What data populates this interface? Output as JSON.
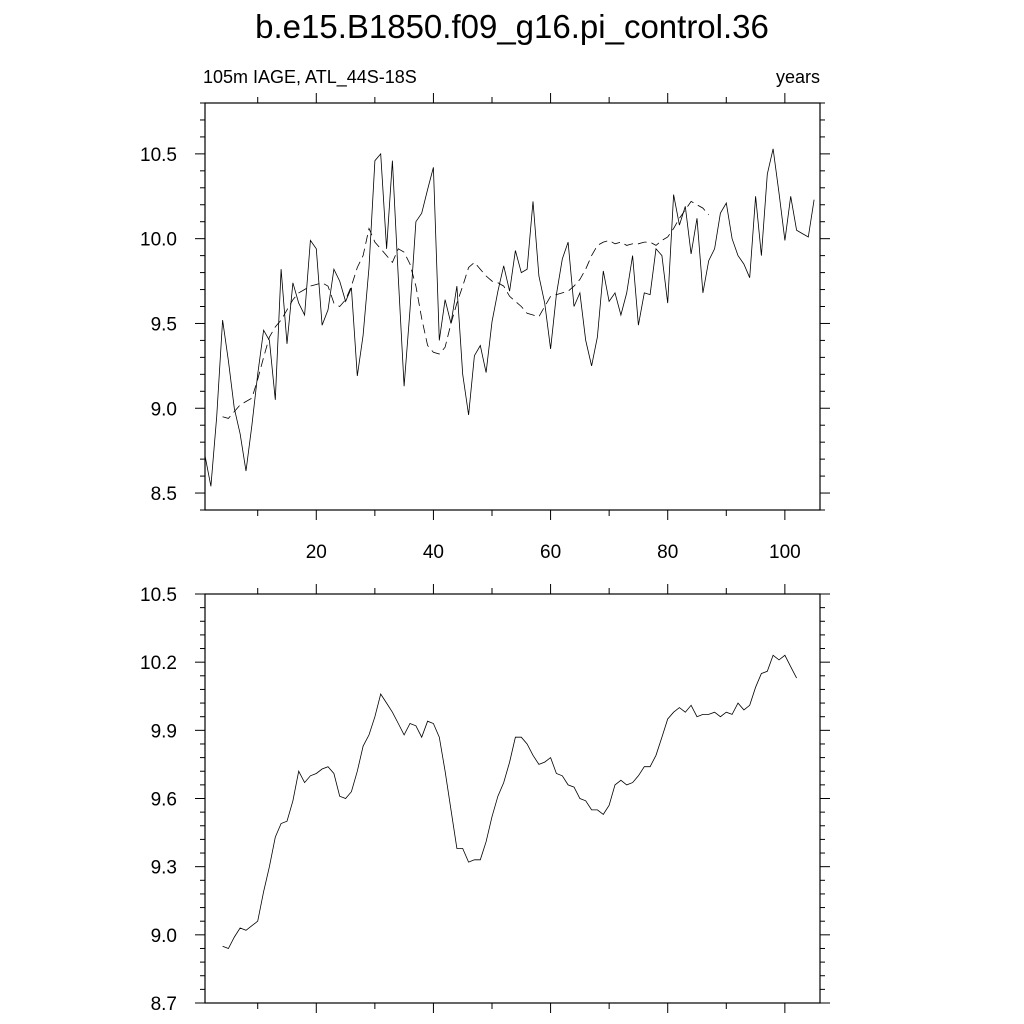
{
  "title": "b.e15.B1850.f09_g16.pi_control.36",
  "chart_data": [
    {
      "type": "line",
      "title": "",
      "left_string": "105m IAGE, ATL_44S-18S",
      "right_string": "years",
      "xlabel": "",
      "ylabel": "",
      "xlim": [
        1,
        106
      ],
      "ylim": [
        8.4,
        10.8
      ],
      "x_ticks": [
        20,
        40,
        60,
        80,
        100
      ],
      "x_tick_labels": [
        "20",
        "40",
        "60",
        "80",
        "100"
      ],
      "y_ticks": [
        8.5,
        9.0,
        9.5,
        10.0,
        10.5
      ],
      "y_tick_labels": [
        "8.5",
        "9.0",
        "9.5",
        "10.0",
        "10.5"
      ],
      "grid": false,
      "series": [
        {
          "style": "solid",
          "x_start": 1,
          "values": [
            8.72,
            8.54,
            8.95,
            9.52,
            9.28,
            9.0,
            8.85,
            8.63,
            8.9,
            9.2,
            9.46,
            9.4,
            9.05,
            9.82,
            9.38,
            9.74,
            9.62,
            9.55,
            9.99,
            9.94,
            9.49,
            9.58,
            9.82,
            9.75,
            9.63,
            9.71,
            9.19,
            9.43,
            9.83,
            10.46,
            10.5,
            9.94,
            10.46,
            9.77,
            9.13,
            9.58,
            10.1,
            10.15,
            10.29,
            10.42,
            9.4,
            9.64,
            9.5,
            9.72,
            9.2,
            8.96,
            9.31,
            9.37,
            9.21,
            9.51,
            9.69,
            9.84,
            9.69,
            9.93,
            9.8,
            9.82,
            10.22,
            9.78,
            9.62,
            9.35,
            9.67,
            9.88,
            9.98,
            9.6,
            9.68,
            9.4,
            9.25,
            9.42,
            9.81,
            9.63,
            9.68,
            9.55,
            9.68,
            9.9,
            9.49,
            9.68,
            9.67,
            9.94,
            9.9,
            9.62,
            10.26,
            10.08,
            10.19,
            9.91,
            10.12,
            9.68,
            9.87,
            9.94,
            10.15,
            10.21,
            10.0,
            9.9,
            9.85,
            9.77,
            10.25,
            9.9,
            10.38,
            10.53,
            10.27,
            9.99,
            10.25,
            10.05,
            10.03,
            10.01,
            10.23
          ]
        },
        {
          "style": "dashed",
          "x_start": 4,
          "values": [
            8.95,
            8.94,
            8.98,
            9.02,
            9.04,
            9.06,
            9.17,
            9.3,
            9.42,
            9.48,
            9.52,
            9.58,
            9.64,
            9.68,
            9.7,
            9.72,
            9.73,
            9.74,
            9.72,
            9.62,
            9.6,
            9.64,
            9.72,
            9.83,
            9.9,
            10.06,
            9.98,
            9.94,
            9.9,
            9.86,
            9.94,
            9.92,
            9.85,
            9.72,
            9.53,
            9.37,
            9.33,
            9.32,
            9.36,
            9.5,
            9.62,
            9.72,
            9.83,
            9.86,
            9.82,
            9.78,
            9.75,
            9.74,
            9.72,
            9.66,
            9.63,
            9.6,
            9.56,
            9.55,
            9.54,
            9.6,
            9.66,
            9.67,
            9.68,
            9.69,
            9.72,
            9.76,
            9.82,
            9.9,
            9.96,
            9.98,
            9.99,
            9.97,
            9.98,
            9.96,
            9.97,
            9.97,
            9.98,
            9.98,
            9.96,
            9.99,
            10.01,
            10.06,
            10.12,
            10.17,
            10.22,
            10.2,
            10.18,
            10.14
          ]
        }
      ]
    },
    {
      "type": "line",
      "title": "",
      "xlabel": "",
      "ylabel": "",
      "xlim": [
        1,
        106
      ],
      "ylim": [
        8.7,
        10.5
      ],
      "x_ticks": [
        20,
        40,
        60,
        80,
        100
      ],
      "y_ticks": [
        8.7,
        9.0,
        9.3,
        9.6,
        9.9,
        10.2,
        10.5
      ],
      "y_tick_labels": [
        "8.7",
        "9.0",
        "9.3",
        "9.6",
        "9.9",
        "10.2",
        "10.5"
      ],
      "grid": false,
      "series": [
        {
          "style": "solid",
          "x_start": 4,
          "values": [
            8.95,
            8.94,
            8.99,
            9.03,
            9.02,
            9.04,
            9.06,
            9.19,
            9.3,
            9.43,
            9.49,
            9.5,
            9.59,
            9.72,
            9.67,
            9.7,
            9.71,
            9.73,
            9.74,
            9.71,
            9.61,
            9.6,
            9.63,
            9.72,
            9.83,
            9.88,
            9.96,
            10.06,
            10.02,
            9.98,
            9.93,
            9.88,
            9.93,
            9.92,
            9.87,
            9.94,
            9.93,
            9.87,
            9.72,
            9.55,
            9.38,
            9.38,
            9.32,
            9.33,
            9.33,
            9.41,
            9.52,
            9.61,
            9.67,
            9.76,
            9.87,
            9.87,
            9.84,
            9.79,
            9.75,
            9.76,
            9.78,
            9.71,
            9.7,
            9.66,
            9.65,
            9.6,
            9.59,
            9.55,
            9.55,
            9.53,
            9.57,
            9.66,
            9.68,
            9.66,
            9.67,
            9.7,
            9.74,
            9.74,
            9.79,
            9.87,
            9.95,
            9.98,
            10.0,
            9.98,
            10.01,
            9.96,
            9.97,
            9.97,
            9.98,
            9.96,
            9.98,
            9.97,
            10.02,
            9.99,
            10.01,
            10.09,
            10.15,
            10.16,
            10.23,
            10.21,
            10.23,
            10.18,
            10.13
          ]
        }
      ]
    }
  ]
}
